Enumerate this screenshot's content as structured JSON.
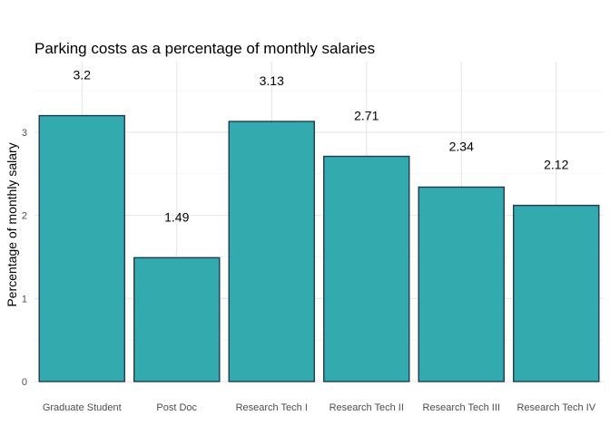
{
  "chart_data": {
    "type": "bar",
    "title": "Parking costs as a percentage of monthly salaries",
    "xlabel": "",
    "ylabel": "Percentage of monthly salary",
    "categories": [
      "Graduate Student",
      "Post Doc",
      "Research Tech I",
      "Research Tech II",
      "Research Tech III",
      "Research Tech IV"
    ],
    "values": [
      3.2,
      1.49,
      3.13,
      2.71,
      2.34,
      2.12
    ],
    "data_labels": [
      "3.2",
      "1.49",
      "3.13",
      "2.71",
      "2.34",
      "2.12"
    ],
    "yticks": [
      "0",
      "1",
      "2",
      "3"
    ],
    "ylim": [
      0,
      3.85
    ],
    "grid": true,
    "legend": "none",
    "colors": {
      "bar_fill": "#33aaad",
      "bar_stroke": "#1f3a5a",
      "grid": "#e6e6e6"
    }
  }
}
